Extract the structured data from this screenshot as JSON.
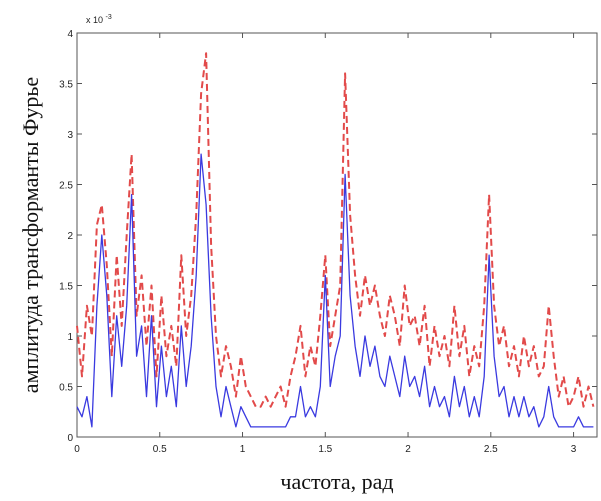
{
  "chart_data": {
    "type": "line",
    "title": "",
    "xlabel": "частота, рад",
    "ylabel": "амплитуда трансформанты Фурье",
    "y_exponent_label": "x 10",
    "y_exponent_power": "-3",
    "xlim": [
      0,
      3.14159
    ],
    "ylim": [
      0,
      0.004
    ],
    "grid": false,
    "x_ticks": [
      0,
      0.5,
      1,
      1.5,
      2,
      2.5,
      3
    ],
    "x_tick_labels": [
      "0",
      "0.5",
      "1",
      "1.5",
      "2",
      "2.5",
      "3"
    ],
    "y_ticks": [
      0,
      0.0005,
      0.001,
      0.0015,
      0.002,
      0.0025,
      0.003,
      0.0035,
      0.004
    ],
    "y_tick_labels": [
      "0",
      "0.5",
      "1",
      "1.5",
      "2",
      "2.5",
      "3",
      "3.5",
      "4"
    ],
    "series": [
      {
        "color": "#e24a4a",
        "style": "dashed",
        "x": [
          0,
          0.03,
          0.06,
          0.09,
          0.12,
          0.15,
          0.18,
          0.21,
          0.24,
          0.27,
          0.3,
          0.33,
          0.36,
          0.39,
          0.42,
          0.45,
          0.48,
          0.51,
          0.54,
          0.57,
          0.6,
          0.63,
          0.66,
          0.69,
          0.72,
          0.75,
          0.78,
          0.81,
          0.84,
          0.87,
          0.9,
          0.93,
          0.96,
          0.99,
          1.02,
          1.05,
          1.08,
          1.11,
          1.14,
          1.17,
          1.2,
          1.23,
          1.26,
          1.29,
          1.32,
          1.35,
          1.38,
          1.41,
          1.44,
          1.47,
          1.5,
          1.53,
          1.56,
          1.59,
          1.62,
          1.65,
          1.68,
          1.71,
          1.74,
          1.77,
          1.8,
          1.83,
          1.86,
          1.89,
          1.92,
          1.95,
          1.98,
          2.01,
          2.04,
          2.07,
          2.1,
          2.13,
          2.16,
          2.19,
          2.22,
          2.25,
          2.28,
          2.31,
          2.34,
          2.37,
          2.4,
          2.43,
          2.46,
          2.49,
          2.52,
          2.55,
          2.58,
          2.61,
          2.64,
          2.67,
          2.7,
          2.73,
          2.76,
          2.79,
          2.82,
          2.85,
          2.88,
          2.91,
          2.94,
          2.97,
          3.0,
          3.03,
          3.06,
          3.09,
          3.12
        ],
        "y": [
          0.0011,
          0.0006,
          0.0013,
          0.001,
          0.0021,
          0.0023,
          0.0017,
          0.0008,
          0.0018,
          0.0011,
          0.002,
          0.0028,
          0.0012,
          0.0016,
          0.0009,
          0.0015,
          0.0006,
          0.0014,
          0.0008,
          0.0011,
          0.0007,
          0.0018,
          0.001,
          0.0014,
          0.0022,
          0.0034,
          0.0038,
          0.0019,
          0.001,
          0.0006,
          0.0009,
          0.0007,
          0.0004,
          0.0008,
          0.0005,
          0.0004,
          0.0003,
          0.0003,
          0.0004,
          0.0003,
          0.0004,
          0.0005,
          0.0003,
          0.0006,
          0.0008,
          0.0011,
          0.0006,
          0.0009,
          0.0007,
          0.0012,
          0.0018,
          0.0009,
          0.0012,
          0.0015,
          0.0036,
          0.0022,
          0.0016,
          0.0012,
          0.0016,
          0.0013,
          0.0015,
          0.0012,
          0.001,
          0.0014,
          0.0012,
          0.0009,
          0.0015,
          0.0011,
          0.0012,
          0.0009,
          0.0013,
          0.0007,
          0.0011,
          0.0008,
          0.001,
          0.0007,
          0.0013,
          0.0008,
          0.0011,
          0.0006,
          0.0009,
          0.0007,
          0.0013,
          0.0024,
          0.0013,
          0.0009,
          0.0011,
          0.0007,
          0.0009,
          0.0006,
          0.001,
          0.0007,
          0.0009,
          0.0006,
          0.0007,
          0.0013,
          0.0008,
          0.0004,
          0.0006,
          0.0003,
          0.0004,
          0.0006,
          0.0003,
          0.0005,
          0.0003
        ]
      },
      {
        "color": "#3a3ae0",
        "style": "solid",
        "x": [
          0,
          0.03,
          0.06,
          0.09,
          0.12,
          0.15,
          0.18,
          0.21,
          0.24,
          0.27,
          0.3,
          0.33,
          0.36,
          0.39,
          0.42,
          0.45,
          0.48,
          0.51,
          0.54,
          0.57,
          0.6,
          0.63,
          0.66,
          0.69,
          0.72,
          0.75,
          0.78,
          0.81,
          0.84,
          0.87,
          0.9,
          0.93,
          0.96,
          0.99,
          1.02,
          1.05,
          1.08,
          1.11,
          1.14,
          1.17,
          1.2,
          1.23,
          1.26,
          1.29,
          1.32,
          1.35,
          1.38,
          1.41,
          1.44,
          1.47,
          1.5,
          1.53,
          1.56,
          1.59,
          1.62,
          1.65,
          1.68,
          1.71,
          1.74,
          1.77,
          1.8,
          1.83,
          1.86,
          1.89,
          1.92,
          1.95,
          1.98,
          2.01,
          2.04,
          2.07,
          2.1,
          2.13,
          2.16,
          2.19,
          2.22,
          2.25,
          2.28,
          2.31,
          2.34,
          2.37,
          2.4,
          2.43,
          2.46,
          2.49,
          2.52,
          2.55,
          2.58,
          2.61,
          2.64,
          2.67,
          2.7,
          2.73,
          2.76,
          2.79,
          2.82,
          2.85,
          2.88,
          2.91,
          2.94,
          2.97,
          3.0,
          3.03,
          3.06,
          3.09,
          3.12
        ],
        "y": [
          0.0003,
          0.0002,
          0.0004,
          0.0001,
          0.0013,
          0.002,
          0.0014,
          0.0004,
          0.0012,
          0.0007,
          0.0013,
          0.0024,
          0.0008,
          0.0011,
          0.0004,
          0.0012,
          0.0003,
          0.0009,
          0.0004,
          0.0007,
          0.0003,
          0.0011,
          0.0005,
          0.0009,
          0.0016,
          0.0028,
          0.0023,
          0.0012,
          0.0005,
          0.0002,
          0.0005,
          0.0003,
          0.0001,
          0.0003,
          0.0002,
          0.0001,
          0.0001,
          0.0001,
          0.0001,
          0.0001,
          0.0001,
          0.0001,
          0.0001,
          0.0002,
          0.0002,
          0.0005,
          0.0002,
          0.0003,
          0.0002,
          0.0005,
          0.0016,
          0.0005,
          0.0008,
          0.001,
          0.0026,
          0.0014,
          0.0009,
          0.0006,
          0.001,
          0.0007,
          0.0009,
          0.0006,
          0.0005,
          0.0008,
          0.0006,
          0.0004,
          0.0008,
          0.0005,
          0.0006,
          0.0004,
          0.0007,
          0.0003,
          0.0005,
          0.0003,
          0.0004,
          0.0002,
          0.0006,
          0.0003,
          0.0005,
          0.0002,
          0.0004,
          0.0002,
          0.0006,
          0.0018,
          0.0008,
          0.0004,
          0.0005,
          0.0002,
          0.0004,
          0.0002,
          0.0004,
          0.0002,
          0.0003,
          0.0001,
          0.0002,
          0.0005,
          0.0002,
          0.0001,
          0.0001,
          0.0001,
          0.0001,
          0.0002,
          0.0001,
          0.0001,
          0.0001
        ]
      }
    ]
  }
}
